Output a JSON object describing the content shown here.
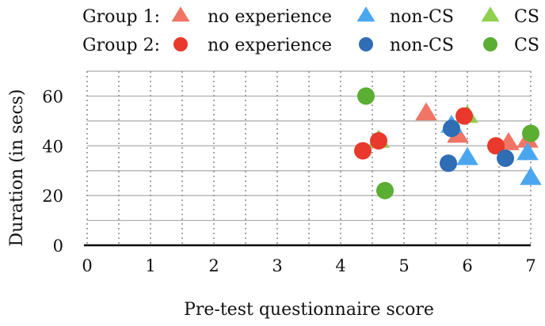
{
  "chart_data": {
    "type": "scatter",
    "title": "",
    "xlabel": "Pre-test questionnaire score",
    "ylabel": "Duration (in secs)",
    "xlim": [
      0,
      7
    ],
    "ylim": [
      0,
      70
    ],
    "x_ticks": [
      0,
      1,
      2,
      3,
      4,
      5,
      6,
      7
    ],
    "y_ticks": [
      0,
      20,
      40,
      60
    ],
    "grid": true,
    "legend_position": "top",
    "legend": {
      "groups": [
        {
          "label": "Group 1:",
          "marker": "triangle"
        },
        {
          "label": "Group 2:",
          "marker": "circle"
        }
      ],
      "categories": [
        "no experience",
        "non-CS",
        "CS"
      ]
    },
    "series": [
      {
        "name": "no experience",
        "group": "Group 1:",
        "marker": "triangle",
        "color": "#F07565",
        "points": [
          {
            "x": 4.6,
            "y": 42
          },
          {
            "x": 5.35,
            "y": 53
          },
          {
            "x": 5.85,
            "y": 44
          },
          {
            "x": 6.65,
            "y": 41
          },
          {
            "x": 6.95,
            "y": 42
          }
        ]
      },
      {
        "name": "non-CS",
        "group": "Group 1:",
        "marker": "triangle",
        "color": "#4BA6F0",
        "points": [
          {
            "x": 5.75,
            "y": 48
          },
          {
            "x": 6.0,
            "y": 35
          },
          {
            "x": 6.95,
            "y": 37
          },
          {
            "x": 7.0,
            "y": 27
          }
        ]
      },
      {
        "name": "CS",
        "group": "Group 1:",
        "marker": "triangle",
        "color": "#8FD14F",
        "points": [
          {
            "x": 4.6,
            "y": 42
          },
          {
            "x": 6.0,
            "y": 52
          }
        ]
      },
      {
        "name": "no experience",
        "group": "Group 2:",
        "marker": "circle",
        "color": "#E8392C",
        "points": [
          {
            "x": 4.35,
            "y": 38
          },
          {
            "x": 4.6,
            "y": 42
          },
          {
            "x": 5.95,
            "y": 52
          },
          {
            "x": 6.45,
            "y": 40
          }
        ]
      },
      {
        "name": "non-CS",
        "group": "Group 2:",
        "marker": "circle",
        "color": "#2F6DB5",
        "points": [
          {
            "x": 5.7,
            "y": 33
          },
          {
            "x": 5.75,
            "y": 47
          },
          {
            "x": 6.6,
            "y": 35
          }
        ]
      },
      {
        "name": "CS",
        "group": "Group 2:",
        "marker": "circle",
        "color": "#5AAE32",
        "points": [
          {
            "x": 4.4,
            "y": 60
          },
          {
            "x": 4.7,
            "y": 22
          },
          {
            "x": 7.0,
            "y": 45
          }
        ]
      }
    ]
  }
}
